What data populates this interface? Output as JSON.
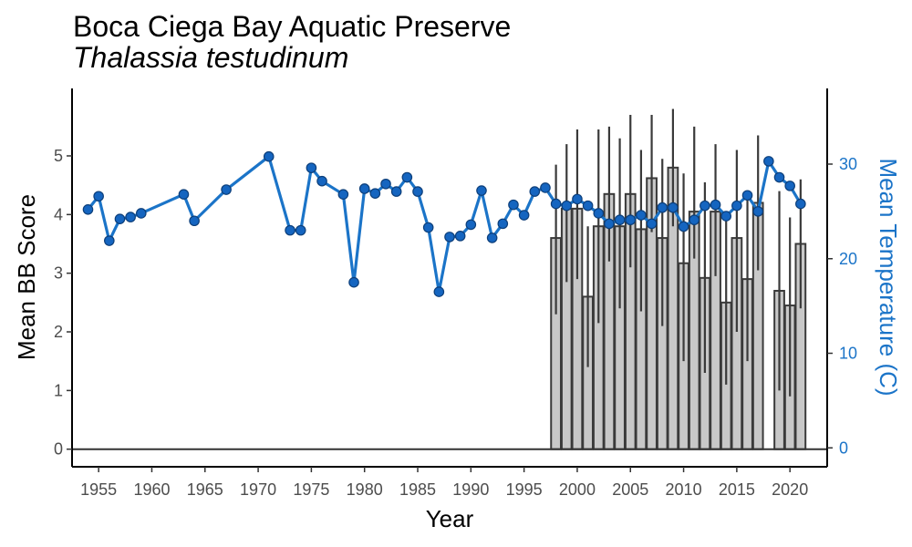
{
  "chart_data": {
    "type": "bar",
    "title": "Boca Ciega Bay Aquatic Preserve",
    "subtitle": "Thalassia testudinum",
    "xlabel": "Year",
    "ylabel": "Mean BB Score",
    "y2label": "Mean Temperature (C)",
    "xlim": [
      1952.5,
      2023.5
    ],
    "ylim": [
      -0.3,
      6.15
    ],
    "y2lim": [
      -2,
      38
    ],
    "x_ticks": [
      "1955",
      "1960",
      "1965",
      "1970",
      "1975",
      "1980",
      "1985",
      "1990",
      "1995",
      "2000",
      "2005",
      "2010",
      "2015",
      "2020"
    ],
    "y_ticks": [
      "0",
      "1",
      "2",
      "3",
      "4",
      "5"
    ],
    "y2_ticks": [
      "0",
      "10",
      "20",
      "30"
    ],
    "grid": false,
    "colors": {
      "bars": "#c8c8c8",
      "bar_outline": "#3a3a3a",
      "temperature": "#1b74c8",
      "temperature_points": "#1565c0",
      "y2_axis": "#1b74c8"
    },
    "series": [
      {
        "kind": "bar",
        "x": [
          1998,
          1999,
          2000,
          2001,
          2002,
          2003,
          2004,
          2005,
          2006,
          2007,
          2008,
          2009,
          2010,
          2011,
          2012,
          2013,
          2014,
          2015,
          2016,
          2017,
          2019,
          2020,
          2021
        ],
        "values": [
          3.6,
          4.1,
          4.1,
          2.6,
          3.8,
          4.35,
          3.8,
          4.35,
          3.75,
          4.62,
          3.6,
          4.8,
          3.17,
          4.05,
          2.92,
          4.05,
          2.5,
          3.6,
          2.9,
          4.2,
          2.7,
          2.45,
          3.5
        ],
        "error_low": [
          2.3,
          2.85,
          2.9,
          1.4,
          2.15,
          3.2,
          2.4,
          3.1,
          2.35,
          3.7,
          2.1,
          3.8,
          1.5,
          3.25,
          1.3,
          2.95,
          1.1,
          2.0,
          1.5,
          3.05,
          1.0,
          0.9,
          2.4
        ],
        "error_high": [
          4.85,
          5.2,
          5.45,
          3.8,
          5.45,
          5.5,
          5.3,
          5.7,
          5.1,
          5.7,
          4.95,
          5.8,
          4.7,
          5.5,
          4.55,
          5.2,
          3.9,
          5.1,
          4.3,
          5.35,
          4.4,
          3.95,
          4.6
        ]
      },
      {
        "kind": "line",
        "axis": "secondary",
        "x": [
          1954,
          1955,
          1956,
          1957,
          1958,
          1959,
          1963,
          1964,
          1967,
          1971,
          1973,
          1974,
          1975,
          1976,
          1978,
          1979,
          1980,
          1981,
          1982,
          1983,
          1984,
          1985,
          1986,
          1987,
          1988,
          1989,
          1990,
          1991,
          1992,
          1993,
          1994,
          1995,
          1996,
          1997,
          1998,
          1999,
          2000,
          2001,
          2002,
          2003,
          2004,
          2005,
          2006,
          2007,
          2008,
          2009,
          2010,
          2011,
          2012,
          2013,
          2014,
          2015,
          2016,
          2017,
          2018,
          2019,
          2020,
          2021
        ],
        "values": [
          25.2,
          26.6,
          21.9,
          24.2,
          24.4,
          24.8,
          26.8,
          24,
          27.3,
          30.8,
          23,
          23,
          29.6,
          28.2,
          26.8,
          17.5,
          27.4,
          26.9,
          27.9,
          27.1,
          28.6,
          27.1,
          23.3,
          16.5,
          22.3,
          22.4,
          23.6,
          27.2,
          22.2,
          23.7,
          25.7,
          24.6,
          27.1,
          27.5,
          25.8,
          25.6,
          26.3,
          25.6,
          24.8,
          23.7,
          24.1,
          24.1,
          24.6,
          23.7,
          25.4,
          25.4,
          23.4,
          24.1,
          25.6,
          25.7,
          24.5,
          25.6,
          26.7,
          25,
          30.3,
          28.6,
          27.7,
          25.8
        ]
      }
    ]
  }
}
